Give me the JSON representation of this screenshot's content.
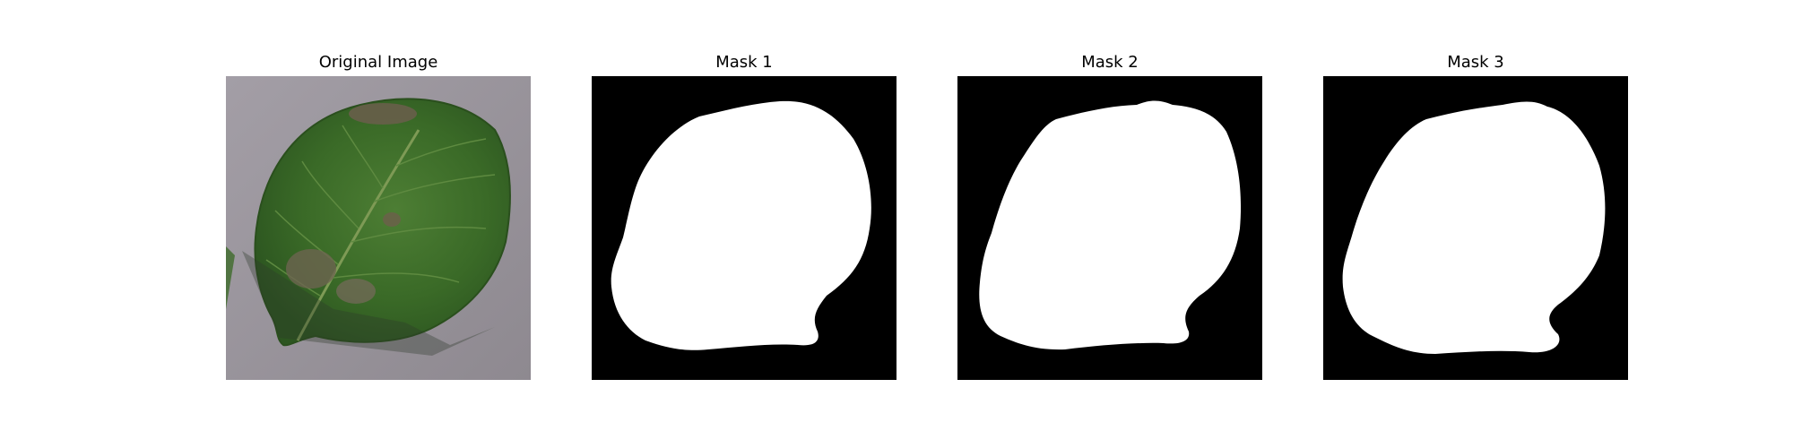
{
  "figure": {
    "panels": [
      {
        "title": "Original Image"
      },
      {
        "title": "Mask 1"
      },
      {
        "title": "Mask 2"
      },
      {
        "title": "Mask 3"
      }
    ]
  },
  "colors": {
    "mask_background": "#000000",
    "mask_foreground": "#ffffff",
    "photo_background": "#9a959b",
    "leaf": "#3e6e2a"
  }
}
